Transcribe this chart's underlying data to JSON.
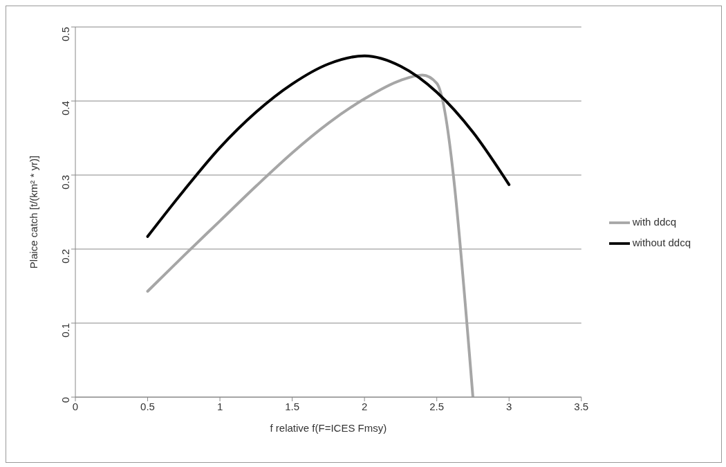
{
  "chart_data": {
    "type": "line",
    "xlabel": "f relative f(F=ICES Fmsy)",
    "ylabel": "Plaice catch [t/(km² * yr)]",
    "xlim": [
      0,
      3.5
    ],
    "xticks": [
      0,
      0.5,
      1,
      1.5,
      2,
      2.5,
      3,
      3.5
    ],
    "ylim": [
      0,
      0.5
    ],
    "yticks": [
      0,
      0.1,
      0.2,
      0.3,
      0.4,
      0.5
    ],
    "grid": "y",
    "legend": "right",
    "marker": "none",
    "line_style": "solid",
    "series": [
      {
        "name": "with ddcq",
        "color": "#a6a6a6",
        "x": [
          0.5,
          0.75,
          1,
          1.25,
          1.5,
          1.75,
          2,
          2.25,
          2.4,
          2.5,
          2.75
        ],
        "values": [
          0.143,
          0.191,
          0.238,
          0.285,
          0.33,
          0.37,
          0.403,
          0.428,
          0.435,
          0.424,
          0
        ]
      },
      {
        "name": "without ddcq",
        "color": "#000000",
        "x": [
          0.5,
          0.75,
          1,
          1.25,
          1.5,
          1.75,
          2,
          2.25,
          2.5,
          2.75,
          3
        ],
        "values": [
          0.217,
          0.279,
          0.337,
          0.385,
          0.423,
          0.45,
          0.461,
          0.447,
          0.412,
          0.358,
          0.287
        ]
      }
    ]
  }
}
